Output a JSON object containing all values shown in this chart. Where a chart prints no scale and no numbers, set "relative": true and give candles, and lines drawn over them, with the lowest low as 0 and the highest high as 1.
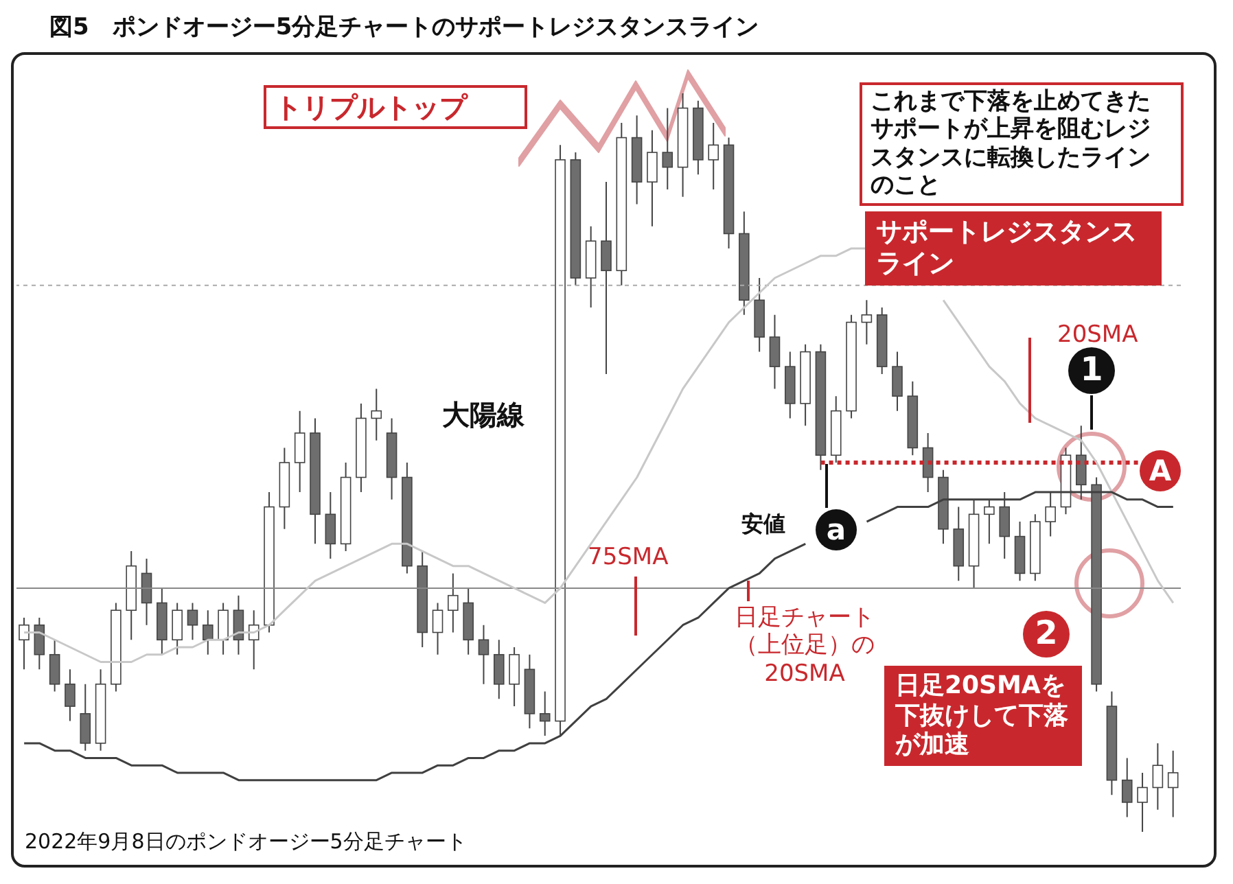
{
  "chart_data": {
    "type": "candlestick",
    "title": "図5　ポンドオージー5分足チャートのサポートレジスタンスライン",
    "relative": true,
    "categories": [
      null,
      null,
      null,
      null,
      null,
      null,
      null,
      null,
      null,
      null,
      null,
      null,
      null,
      null,
      null,
      null,
      null,
      null,
      null,
      null,
      null,
      null,
      null,
      null,
      null,
      null,
      null,
      null,
      null,
      null,
      null,
      null,
      null,
      null,
      null,
      null,
      null,
      null,
      null,
      null,
      null,
      null,
      null,
      null,
      null,
      null,
      null,
      null,
      null,
      null,
      null,
      null,
      null,
      null,
      null,
      null,
      null,
      null,
      null,
      null,
      null,
      null,
      null,
      null,
      null,
      null,
      null,
      null,
      null,
      null,
      null,
      null,
      null,
      null,
      null,
      null
    ],
    "ohlc": [
      [
        0.26,
        0.29,
        0.22,
        0.28
      ],
      [
        0.28,
        0.29,
        0.22,
        0.24
      ],
      [
        0.24,
        0.26,
        0.19,
        0.2
      ],
      [
        0.2,
        0.22,
        0.15,
        0.17
      ],
      [
        0.16,
        0.2,
        0.11,
        0.12
      ],
      [
        0.12,
        0.22,
        0.11,
        0.2
      ],
      [
        0.2,
        0.31,
        0.19,
        0.3
      ],
      [
        0.3,
        0.38,
        0.26,
        0.36
      ],
      [
        0.35,
        0.37,
        0.28,
        0.31
      ],
      [
        0.31,
        0.33,
        0.24,
        0.26
      ],
      [
        0.26,
        0.31,
        0.24,
        0.3
      ],
      [
        0.3,
        0.31,
        0.26,
        0.28
      ],
      [
        0.28,
        0.3,
        0.24,
        0.26
      ],
      [
        0.26,
        0.31,
        0.24,
        0.3
      ],
      [
        0.3,
        0.32,
        0.24,
        0.26
      ],
      [
        0.26,
        0.3,
        0.22,
        0.28
      ],
      [
        0.28,
        0.46,
        0.27,
        0.44
      ],
      [
        0.44,
        0.52,
        0.41,
        0.5
      ],
      [
        0.5,
        0.57,
        0.46,
        0.54
      ],
      [
        0.54,
        0.56,
        0.39,
        0.43
      ],
      [
        0.43,
        0.46,
        0.37,
        0.39
      ],
      [
        0.39,
        0.5,
        0.38,
        0.48
      ],
      [
        0.48,
        0.58,
        0.46,
        0.56
      ],
      [
        0.56,
        0.6,
        0.53,
        0.57
      ],
      [
        0.54,
        0.56,
        0.45,
        0.48
      ],
      [
        0.48,
        0.5,
        0.35,
        0.36
      ],
      [
        0.36,
        0.38,
        0.25,
        0.27
      ],
      [
        0.27,
        0.31,
        0.24,
        0.3
      ],
      [
        0.3,
        0.35,
        0.27,
        0.32
      ],
      [
        0.31,
        0.33,
        0.24,
        0.26
      ],
      [
        0.26,
        0.28,
        0.2,
        0.24
      ],
      [
        0.24,
        0.26,
        0.18,
        0.2
      ],
      [
        0.2,
        0.25,
        0.17,
        0.24
      ],
      [
        0.22,
        0.24,
        0.14,
        0.16
      ],
      [
        0.16,
        0.19,
        0.13,
        0.15
      ],
      [
        0.15,
        0.93,
        0.13,
        0.91
      ],
      [
        0.91,
        0.92,
        0.74,
        0.75
      ],
      [
        0.75,
        0.82,
        0.71,
        0.8
      ],
      [
        0.8,
        0.88,
        0.62,
        0.76
      ],
      [
        0.76,
        0.96,
        0.74,
        0.94
      ],
      [
        0.94,
        0.97,
        0.85,
        0.88
      ],
      [
        0.88,
        0.95,
        0.82,
        0.92
      ],
      [
        0.92,
        0.98,
        0.87,
        0.9
      ],
      [
        0.9,
        1,
        0.86,
        0.98
      ],
      [
        0.98,
        0.99,
        0.89,
        0.91
      ],
      [
        0.91,
        0.96,
        0.87,
        0.93
      ],
      [
        0.93,
        0.94,
        0.79,
        0.81
      ],
      [
        0.81,
        0.84,
        0.7,
        0.72
      ],
      [
        0.72,
        0.75,
        0.65,
        0.67
      ],
      [
        0.67,
        0.7,
        0.6,
        0.63
      ],
      [
        0.63,
        0.65,
        0.56,
        0.58
      ],
      [
        0.58,
        0.66,
        0.55,
        0.65
      ],
      [
        0.65,
        0.66,
        0.49,
        0.51
      ],
      [
        0.51,
        0.59,
        0.5,
        0.57
      ],
      [
        0.57,
        0.7,
        0.56,
        0.69
      ],
      [
        0.69,
        0.72,
        0.66,
        0.7
      ],
      [
        0.7,
        0.71,
        0.62,
        0.63
      ],
      [
        0.63,
        0.65,
        0.57,
        0.59
      ],
      [
        0.59,
        0.61,
        0.51,
        0.52
      ],
      [
        0.52,
        0.54,
        0.46,
        0.48
      ],
      [
        0.48,
        0.49,
        0.39,
        0.41
      ],
      [
        0.41,
        0.44,
        0.34,
        0.36
      ],
      [
        0.36,
        0.45,
        0.33,
        0.43
      ],
      [
        0.43,
        0.45,
        0.39,
        0.44
      ],
      [
        0.44,
        0.46,
        0.37,
        0.4
      ],
      [
        0.4,
        0.42,
        0.34,
        0.35
      ],
      [
        0.35,
        0.43,
        0.34,
        0.42
      ],
      [
        0.42,
        0.46,
        0.4,
        0.44
      ],
      [
        0.44,
        0.52,
        0.43,
        0.51
      ],
      [
        0.51,
        0.55,
        0.45,
        0.47
      ],
      [
        0.47,
        0.48,
        0.19,
        0.2
      ],
      [
        0.17,
        0.19,
        0.05,
        0.07
      ],
      [
        0.07,
        0.1,
        0.02,
        0.04
      ],
      [
        0.04,
        0.08,
        0,
        0.06
      ],
      [
        0.06,
        0.12,
        0.03,
        0.09
      ],
      [
        0.06,
        0.11,
        0.02,
        0.08
      ]
    ],
    "colors": [
      "#ffffff",
      "#6e6e6e",
      "#6e6e6e",
      "#6e6e6e",
      "#6e6e6e",
      "#ffffff",
      "#ffffff",
      "#ffffff",
      "#6e6e6e",
      "#6e6e6e",
      "#ffffff",
      "#6e6e6e",
      "#6e6e6e",
      "#ffffff",
      "#6e6e6e",
      "#ffffff",
      "#ffffff",
      "#ffffff",
      "#ffffff",
      "#6e6e6e",
      "#6e6e6e",
      "#ffffff",
      "#ffffff",
      "#ffffff",
      "#6e6e6e",
      "#6e6e6e",
      "#6e6e6e",
      "#ffffff",
      "#ffffff",
      "#6e6e6e",
      "#6e6e6e",
      "#6e6e6e",
      "#ffffff",
      "#6e6e6e",
      "#6e6e6e",
      "#ffffff",
      "#6e6e6e",
      "#ffffff",
      "#6e6e6e",
      "#ffffff",
      "#6e6e6e",
      "#ffffff",
      "#6e6e6e",
      "#ffffff",
      "#6e6e6e",
      "#ffffff",
      "#6e6e6e",
      "#6e6e6e",
      "#6e6e6e",
      "#6e6e6e",
      "#6e6e6e",
      "#ffffff",
      "#6e6e6e",
      "#ffffff",
      "#ffffff",
      "#ffffff",
      "#6e6e6e",
      "#6e6e6e",
      "#6e6e6e",
      "#6e6e6e",
      "#6e6e6e",
      "#6e6e6e",
      "#ffffff",
      "#ffffff",
      "#6e6e6e",
      "#6e6e6e",
      "#ffffff",
      "#ffffff",
      "#ffffff",
      "#6e6e6e",
      "#6e6e6e",
      "#6e6e6e",
      "#6e6e6e",
      "#ffffff",
      "#ffffff",
      "#ffffff"
    ],
    "series": [
      {
        "type": "line",
        "color": "#c8c8c8",
        "values": [
          0.27,
          0.27,
          0.26,
          0.25,
          0.24,
          0.23,
          0.23,
          0.23,
          0.24,
          0.24,
          0.25,
          0.25,
          0.26,
          0.26,
          0.27,
          0.27,
          0.28,
          0.3,
          0.32,
          0.34,
          0.35,
          0.36,
          0.37,
          0.38,
          0.39,
          0.39,
          0.38,
          0.37,
          0.36,
          0.36,
          0.35,
          0.34,
          0.33,
          0.32,
          0.31,
          0.33,
          0.36,
          0.39,
          0.42,
          0.45,
          0.48,
          0.52,
          0.56,
          0.6,
          0.63,
          0.66,
          0.69,
          0.71,
          0.73,
          0.75,
          0.76,
          0.77,
          0.78,
          0.78,
          0.79,
          0.79,
          null,
          null,
          null,
          null,
          0.72,
          0.69,
          0.66,
          0.63,
          0.61,
          0.58,
          0.56,
          0.55,
          0.54,
          0.53,
          0.5,
          0.46,
          0.42,
          0.38,
          0.34,
          0.31
        ]
      },
      {
        "type": "line",
        "color": "#404040",
        "values": [
          0.12,
          0.12,
          0.11,
          0.11,
          0.1,
          0.1,
          0.1,
          0.09,
          0.09,
          0.09,
          0.08,
          0.08,
          0.08,
          0.08,
          0.07,
          0.07,
          0.07,
          0.07,
          0.07,
          0.07,
          0.07,
          0.07,
          0.07,
          0.07,
          0.08,
          0.08,
          0.08,
          0.09,
          0.09,
          0.1,
          0.1,
          0.11,
          0.11,
          0.12,
          0.12,
          0.13,
          0.15,
          0.17,
          0.18,
          0.2,
          0.22,
          0.24,
          0.26,
          0.28,
          0.29,
          0.31,
          0.33,
          0.34,
          0.35,
          0.37,
          0.38,
          0.39,
          null,
          null,
          null,
          0.42,
          0.43,
          0.44,
          0.44,
          0.44,
          0.45,
          0.45,
          0.45,
          0.45,
          0.45,
          0.45,
          0.46,
          0.46,
          0.46,
          0.46,
          0.46,
          0.46,
          0.45,
          0.45,
          0.44,
          0.44
        ]
      }
    ],
    "ref_lines": [
      {
        "axis": "y",
        "value": 0.33,
        "color": "#888888",
        "line_style": "solid"
      },
      {
        "axis": "y",
        "value": 0.74,
        "color": "#aaaaaa",
        "line_style": "dotted"
      },
      {
        "axis": "y",
        "value": 0.5,
        "color": "#c8282d",
        "line_style": "dotted"
      }
    ],
    "annotations": [
      "トリプルトップ",
      "これまで下落を止めてきたサポートが上昇を阻むレジスタンスに転換したラインのこと",
      "サポートレジスタンスライン",
      "20SMA",
      "大陽線",
      "安値",
      "a",
      "75SMA",
      "日足チャート（上位足）の20SMA",
      "1",
      "A",
      "2",
      "日足20SMAを下抜けして下落が加速",
      "2022年9月8日のポンドオージー5分足チャート"
    ]
  }
}
